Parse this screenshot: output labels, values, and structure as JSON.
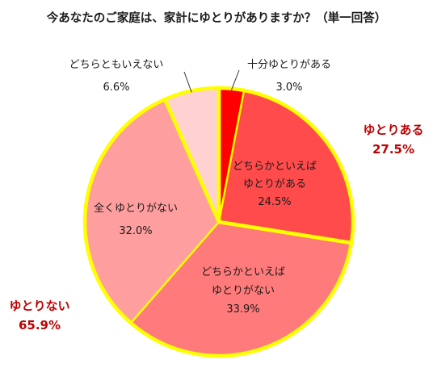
{
  "chart_data": {
    "type": "pie",
    "title": "今あなたのご家庭は、家計にゆとりがありますか？（単一回答）",
    "slices": [
      {
        "label": "十分ゆとりがある",
        "value": 3.0,
        "value_label": "3.0%",
        "color": "#ff0000"
      },
      {
        "label": "どちらかといえばゆとりがある",
        "label_lines": [
          "どちらかといえば",
          "ゆとりがある"
        ],
        "value": 24.5,
        "value_label": "24.5%",
        "color": "#ff4b4b"
      },
      {
        "label": "どちらかといえばゆとりがない",
        "label_lines": [
          "どちらかといえば",
          "ゆとりがない"
        ],
        "value": 33.9,
        "value_label": "33.9%",
        "color": "#ff7b7b"
      },
      {
        "label": "全くゆとりがない",
        "value": 32.0,
        "value_label": "32.0%",
        "color": "#ff9e9e"
      },
      {
        "label": "どちらともいえない",
        "value": 6.6,
        "value_label": "6.6%",
        "color": "#ffd2d2"
      }
    ],
    "groups": [
      {
        "label": "ゆとりある",
        "value": 27.5,
        "value_label": "27.5%",
        "color": "#c00000"
      },
      {
        "label": "ゆとりない",
        "value": 65.9,
        "value_label": "65.9%",
        "color": "#c00000"
      }
    ],
    "outline_color": "#ffff00",
    "slice_border_color": "#ffffff"
  }
}
